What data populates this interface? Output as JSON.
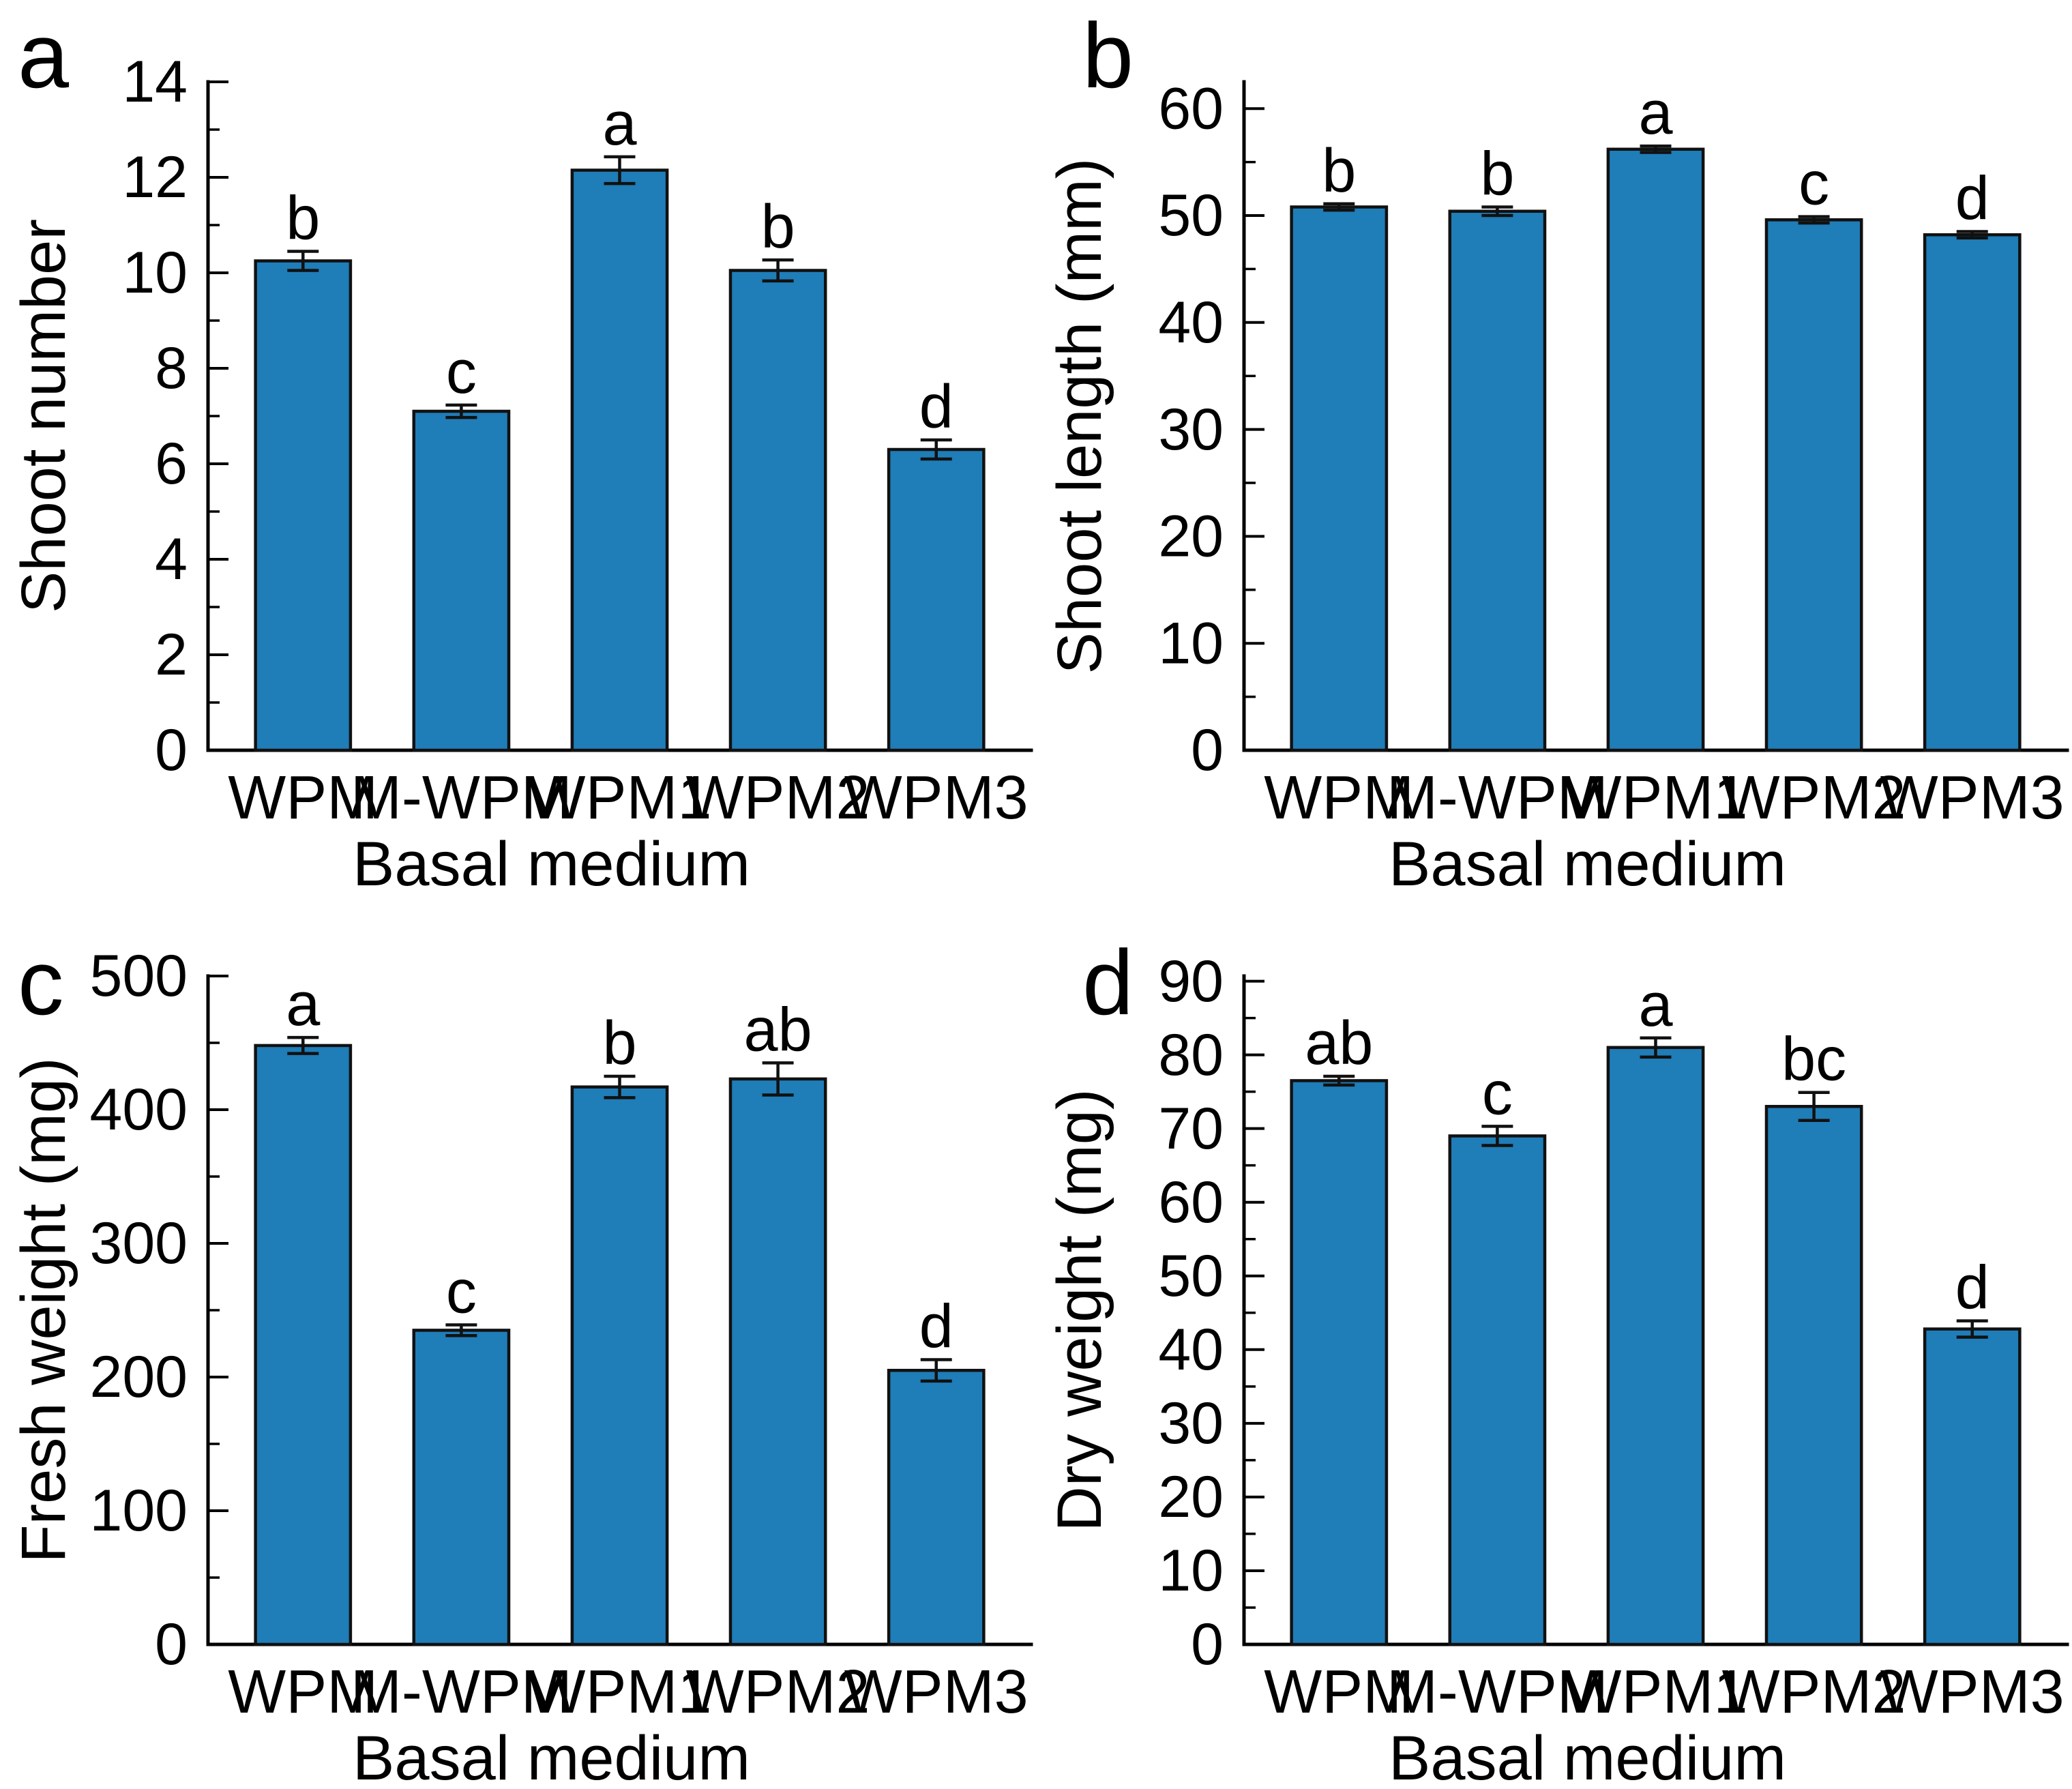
{
  "figure": {
    "background": "#ffffff",
    "axis_color": "#000000",
    "text_color": "#000000"
  },
  "chart_data": [
    {
      "panel_label": "a",
      "type": "bar",
      "title": "",
      "xlabel": "Basal medium",
      "ylabel": "Shoot number",
      "categories": [
        "WPM",
        "M-WPM",
        "WPM1",
        "WPM2",
        "WPM3"
      ],
      "values": [
        10.25,
        7.1,
        12.15,
        10.05,
        6.3
      ],
      "errors": [
        0.2,
        0.13,
        0.28,
        0.22,
        0.2
      ],
      "sig_letters": [
        "b",
        "c",
        "a",
        "b",
        "d"
      ],
      "ylim": [
        0,
        14
      ],
      "ytick_step": 2,
      "yminor_step": 1,
      "bar_color": "#1F7DB8",
      "grid": false,
      "legend": null
    },
    {
      "panel_label": "b",
      "type": "bar",
      "title": "",
      "xlabel": "Basal medium",
      "ylabel": "Shoot length (mm)",
      "categories": [
        "WPM",
        "M-WPM",
        "WPM1",
        "WPM2",
        "WPM3"
      ],
      "values": [
        50.8,
        50.4,
        56.2,
        49.6,
        48.2
      ],
      "errors": [
        0.3,
        0.4,
        0.3,
        0.3,
        0.3
      ],
      "sig_letters": [
        "b",
        "b",
        "a",
        "c",
        "d"
      ],
      "ylim": [
        0,
        62.5
      ],
      "ytick_step": 10,
      "yminor_step": 5,
      "bar_color": "#1F7DB8",
      "grid": false,
      "legend": null
    },
    {
      "panel_label": "c",
      "type": "bar",
      "title": "",
      "xlabel": "Basal medium",
      "ylabel": "Fresh weight (mg)",
      "categories": [
        "WPM",
        "M-WPM",
        "WPM1",
        "WPM2",
        "WPM3"
      ],
      "values": [
        448,
        235,
        417,
        423,
        205
      ],
      "errors": [
        6,
        4,
        8,
        12,
        8
      ],
      "sig_letters": [
        "a",
        "c",
        "b",
        "ab",
        "d"
      ],
      "ylim": [
        0,
        500
      ],
      "ytick_step": 100,
      "yminor_step": 50,
      "bar_color": "#1F7DB8",
      "grid": false,
      "legend": null
    },
    {
      "panel_label": "d",
      "type": "bar",
      "title": "",
      "xlabel": "Basal medium",
      "ylabel": "Dry weight (mg)",
      "categories": [
        "WPM",
        "M-WPM",
        "WPM1",
        "WPM2",
        "WPM3"
      ],
      "values": [
        76.5,
        69.0,
        81.0,
        73.0,
        42.8
      ],
      "errors": [
        0.6,
        1.3,
        1.3,
        1.9,
        1.1
      ],
      "sig_letters": [
        "ab",
        "c",
        "a",
        "bc",
        "d"
      ],
      "ylim": [
        0,
        90.7
      ],
      "ytick_step": 10,
      "yminor_step": 5,
      "bar_color": "#1F7DB8",
      "grid": false,
      "legend": null
    }
  ]
}
